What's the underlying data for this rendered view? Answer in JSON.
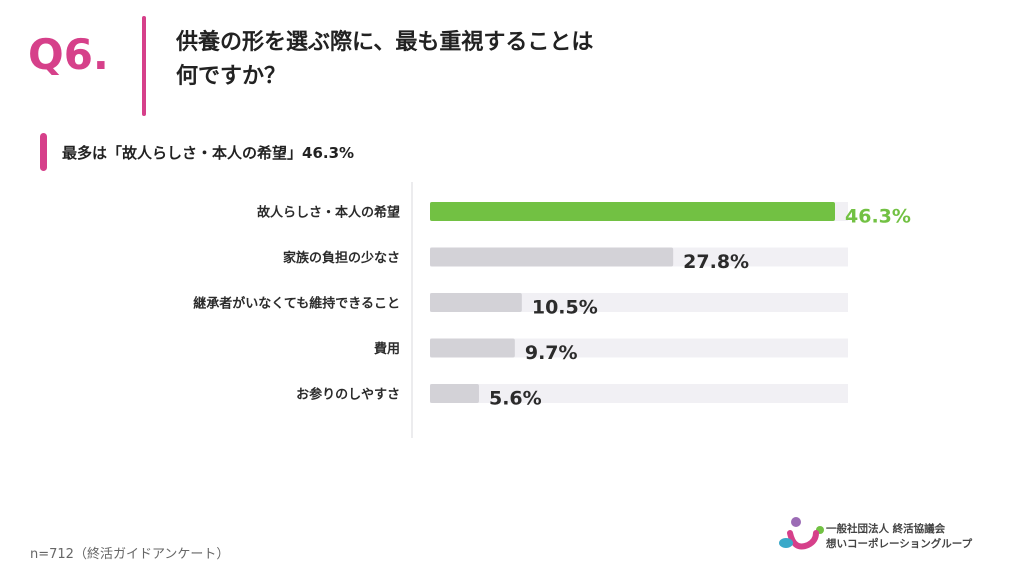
{
  "header": {
    "question_number": "Q6.",
    "title_line1": "供養の形を選ぶ際に、最も重視することは",
    "title_line2": "何ですか？"
  },
  "summary": "最多は「故人らしさ・本人の希望」46.3%",
  "chart_data": {
    "type": "bar",
    "orientation": "horizontal",
    "categories": [
      "故人らしさ・本人の希望",
      "家族の負担の少なさ",
      "継承者がいなくても維持できること",
      "費用",
      "お参りのしやすさ"
    ],
    "values": [
      46.3,
      27.8,
      10.5,
      9.7,
      5.6
    ],
    "value_labels": [
      "46.3%",
      "27.8%",
      "10.5%",
      "9.7%",
      "5.6%"
    ],
    "xlim": [
      0,
      50
    ],
    "colors": {
      "highlight": "#72c143",
      "bar": "#d3d2d7",
      "track": "#f1f0f4",
      "label_highlight": "#72c143",
      "label": "#2b2b2b"
    },
    "highlight_index": 0
  },
  "footnote": "n=712（終活ガイドアンケート）",
  "logo": {
    "line1": "一般社団法人 終活協議会",
    "line2": "想いコーポレーショングループ",
    "colors": [
      "#9b6bb5",
      "#d6408a",
      "#72c143",
      "#3aa9c9"
    ]
  }
}
